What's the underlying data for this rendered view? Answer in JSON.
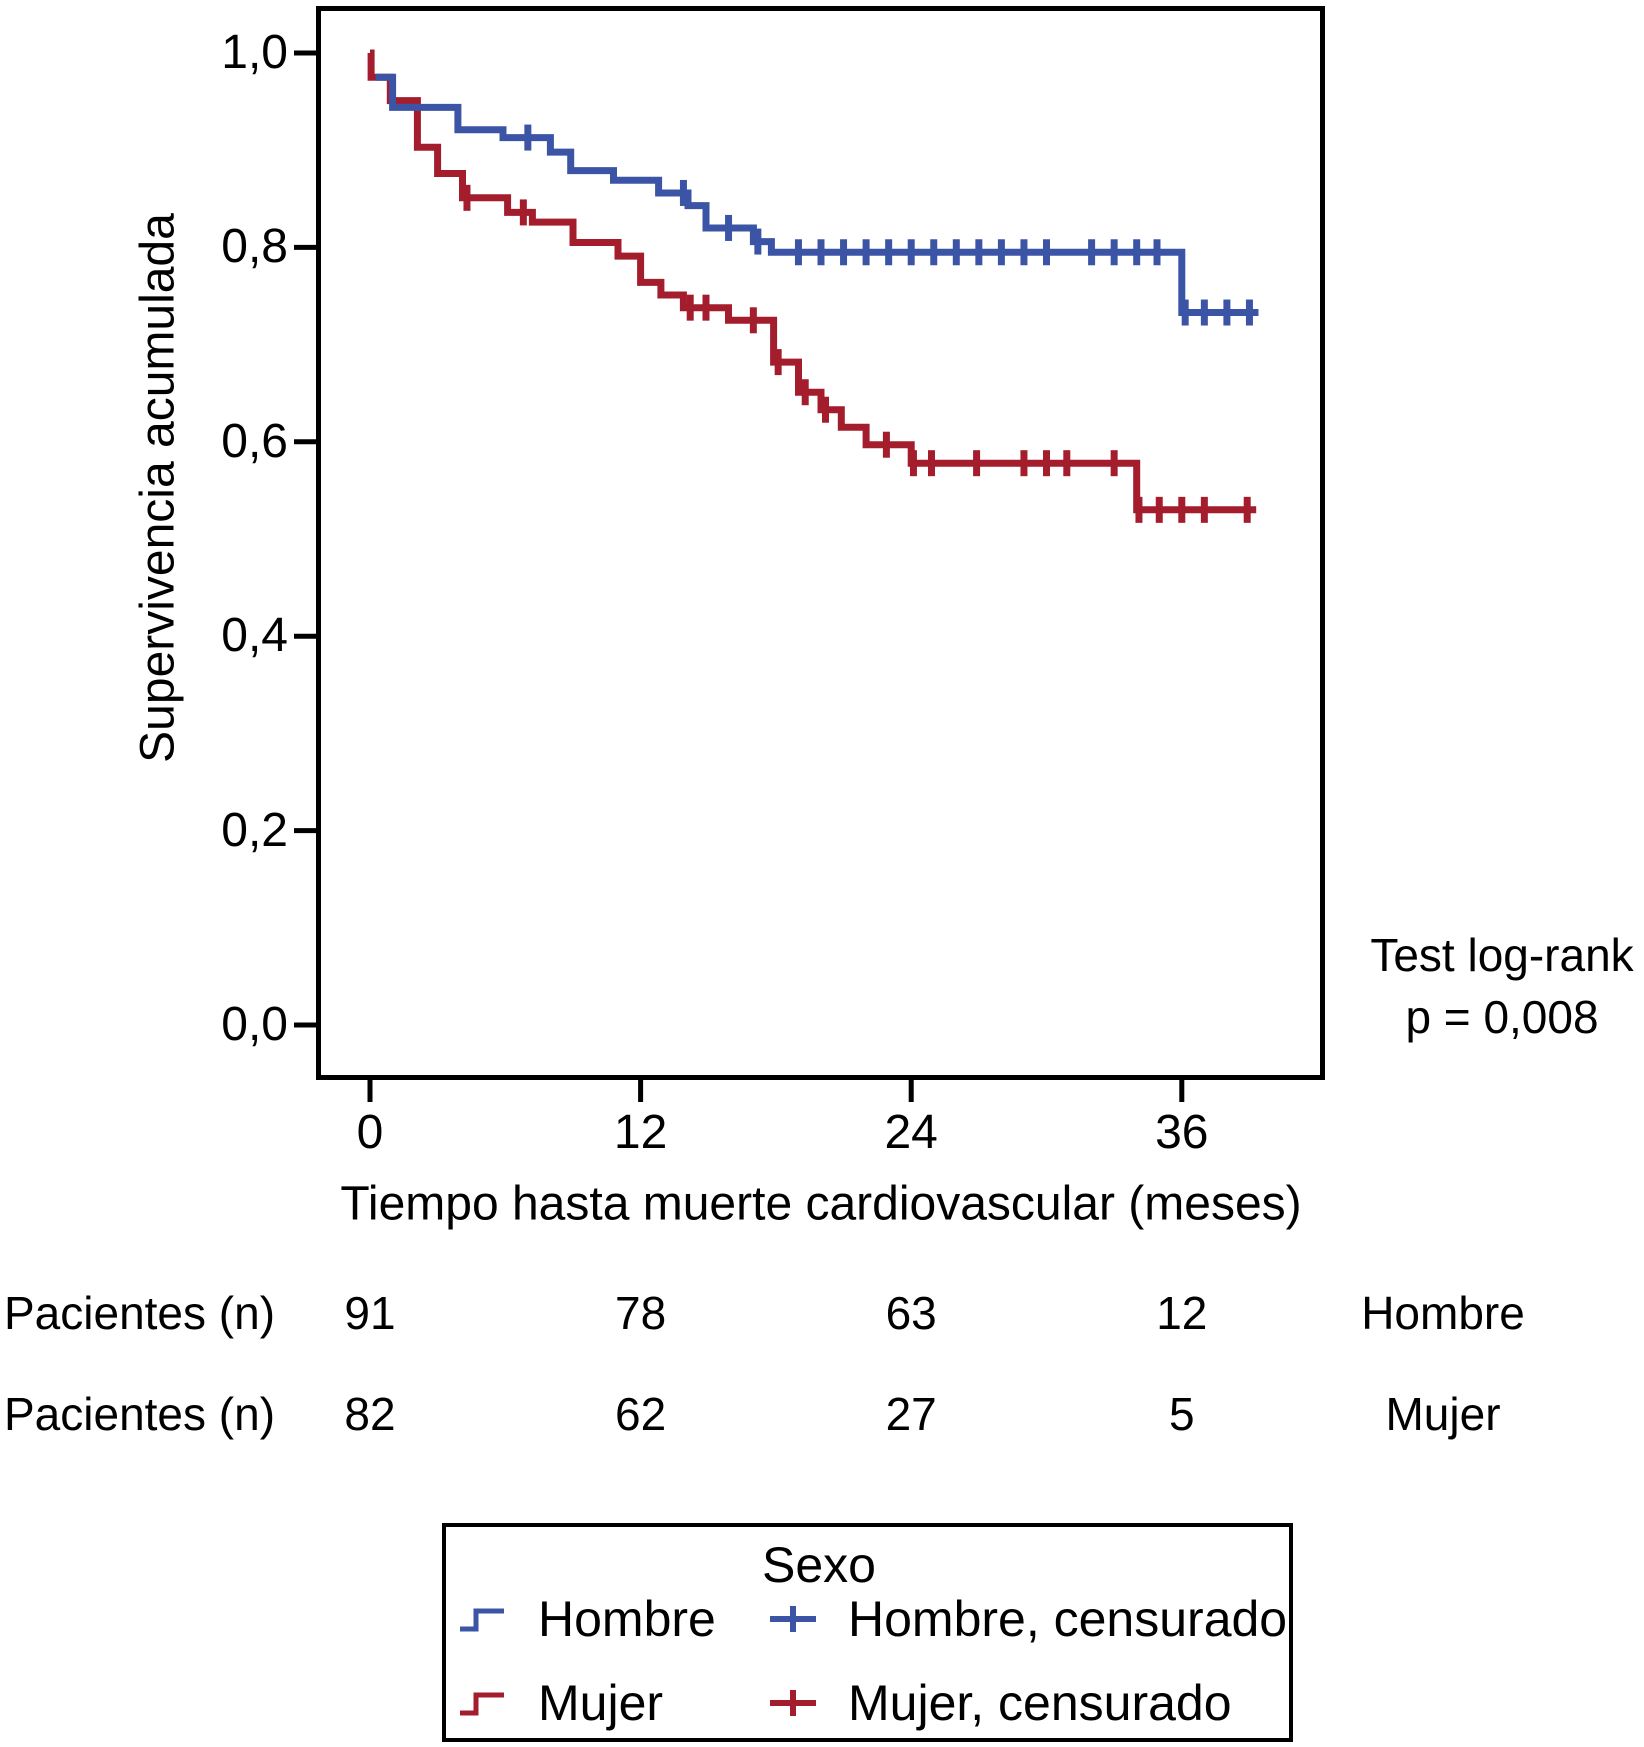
{
  "chart_data": {
    "type": "line",
    "subtype": "kaplan-meier-survival",
    "title": "",
    "ylabel": "Supervivencia acumulada",
    "xlabel": "Tiempo hasta muerte cardiovascular (meses)",
    "xlim": [
      0,
      42
    ],
    "ylim": [
      0,
      1.0
    ],
    "grid": false,
    "x_ticks": [
      {
        "v": 0,
        "label": "0"
      },
      {
        "v": 12,
        "label": "12"
      },
      {
        "v": 24,
        "label": "24"
      },
      {
        "v": 36,
        "label": "36"
      }
    ],
    "y_ticks": [
      {
        "v": 0.0,
        "label": "0,0"
      },
      {
        "v": 0.2,
        "label": "0,2"
      },
      {
        "v": 0.4,
        "label": "0,4"
      },
      {
        "v": 0.6,
        "label": "0,6"
      },
      {
        "v": 0.8,
        "label": "0,8"
      },
      {
        "v": 1.0,
        "label": "1,0"
      }
    ],
    "annotation": {
      "line1": "Test log-rank",
      "line2": "p = 0,008"
    },
    "series": [
      {
        "name": "Mujer",
        "color": "#A31D2C",
        "end_t": 39.3,
        "steps": [
          [
            0,
            1.0
          ],
          [
            0.05,
            0.975
          ],
          [
            0.9,
            0.951
          ],
          [
            2.1,
            0.903
          ],
          [
            3.0,
            0.876
          ],
          [
            4.1,
            0.851
          ],
          [
            6.1,
            0.836
          ],
          [
            7.2,
            0.826
          ],
          [
            9.0,
            0.805
          ],
          [
            11.0,
            0.791
          ],
          [
            12.0,
            0.764
          ],
          [
            12.9,
            0.751
          ],
          [
            13.9,
            0.738
          ],
          [
            15.9,
            0.725
          ],
          [
            17.9,
            0.682
          ],
          [
            19.0,
            0.651
          ],
          [
            20.0,
            0.633
          ],
          [
            20.9,
            0.615
          ],
          [
            22.0,
            0.597
          ],
          [
            24.0,
            0.578
          ],
          [
            34.0,
            0.53
          ]
        ],
        "censored": [
          [
            4.3,
            0.851
          ],
          [
            6.8,
            0.836
          ],
          [
            14.2,
            0.738
          ],
          [
            14.9,
            0.738
          ],
          [
            17.0,
            0.725
          ],
          [
            18.1,
            0.682
          ],
          [
            19.3,
            0.651
          ],
          [
            20.2,
            0.633
          ],
          [
            22.9,
            0.597
          ],
          [
            24.1,
            0.578
          ],
          [
            24.9,
            0.578
          ],
          [
            26.9,
            0.578
          ],
          [
            29.0,
            0.578
          ],
          [
            30.0,
            0.578
          ],
          [
            30.9,
            0.578
          ],
          [
            33.0,
            0.578
          ],
          [
            34.1,
            0.53
          ],
          [
            35.0,
            0.53
          ],
          [
            36.0,
            0.53
          ],
          [
            37.0,
            0.53
          ],
          [
            38.9,
            0.53
          ]
        ]
      },
      {
        "name": "Hombre",
        "color": "#3B54A5",
        "end_t": 39.4,
        "steps": [
          [
            0.25,
            0.975
          ],
          [
            1.0,
            0.944
          ],
          [
            3.9,
            0.921
          ],
          [
            5.9,
            0.913
          ],
          [
            8.0,
            0.898
          ],
          [
            8.9,
            0.879
          ],
          [
            10.8,
            0.869
          ],
          [
            12.8,
            0.856
          ],
          [
            14.1,
            0.843
          ],
          [
            14.9,
            0.82
          ],
          [
            17.0,
            0.806
          ],
          [
            17.8,
            0.795
          ],
          [
            36.0,
            0.733
          ]
        ],
        "censored": [
          [
            7.0,
            0.913
          ],
          [
            13.9,
            0.856
          ],
          [
            15.9,
            0.82
          ],
          [
            17.2,
            0.806
          ],
          [
            19.0,
            0.795
          ],
          [
            20.0,
            0.795
          ],
          [
            21.0,
            0.795
          ],
          [
            22.0,
            0.795
          ],
          [
            23.0,
            0.795
          ],
          [
            24.0,
            0.795
          ],
          [
            25.0,
            0.795
          ],
          [
            26.0,
            0.795
          ],
          [
            27.0,
            0.795
          ],
          [
            28.0,
            0.795
          ],
          [
            29.0,
            0.795
          ],
          [
            30.0,
            0.795
          ],
          [
            32.0,
            0.795
          ],
          [
            33.0,
            0.795
          ],
          [
            34.0,
            0.795
          ],
          [
            34.9,
            0.795
          ],
          [
            36.15,
            0.733
          ],
          [
            37.0,
            0.733
          ],
          [
            38.0,
            0.733
          ],
          [
            39.0,
            0.733
          ]
        ]
      }
    ]
  },
  "risk_table": {
    "rows": [
      {
        "label": "Pacientes (n)",
        "counts": [
          "91",
          "78",
          "63",
          "12"
        ],
        "group": "Hombre"
      },
      {
        "label": "Pacientes (n)",
        "counts": [
          "82",
          "62",
          "27",
          "5"
        ],
        "group": "Mujer"
      }
    ]
  },
  "legend": {
    "title": "Sexo",
    "items": [
      {
        "label": "Hombre",
        "marker": "step",
        "color": "#3B54A5"
      },
      {
        "label": "Hombre, censurado",
        "marker": "plus",
        "color": "#3B54A5"
      },
      {
        "label": "Mujer",
        "marker": "step",
        "color": "#A31D2C"
      },
      {
        "label": "Mujer, censurado",
        "marker": "plus",
        "color": "#A31D2C"
      }
    ]
  }
}
